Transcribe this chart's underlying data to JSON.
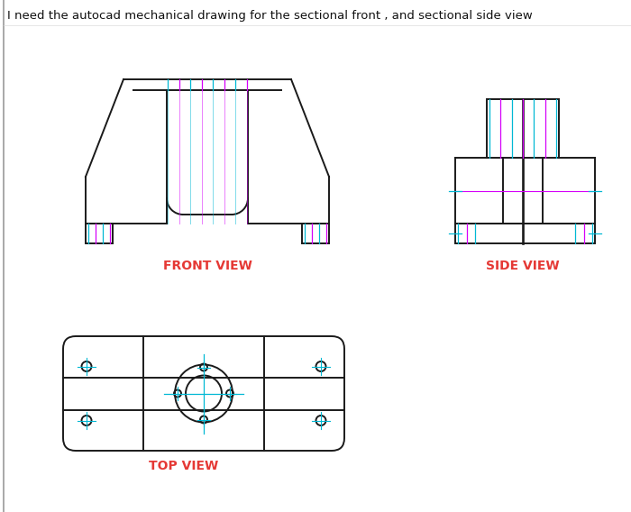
{
  "title_text": "I need the autocad mechanical drawing for the sectional front , and sectional side view",
  "title_fontsize": 9.5,
  "bg_color": "#ffffff",
  "outline_color": "#1a1a1a",
  "hatch_cyan": "#00b8d4",
  "hatch_magenta": "#d500f9",
  "label_color": "#e53935",
  "label_fontsize": 10,
  "front_label": "FRONT VIEW",
  "side_label": "SIDE VIEW",
  "top_label": "TOP VIEW"
}
